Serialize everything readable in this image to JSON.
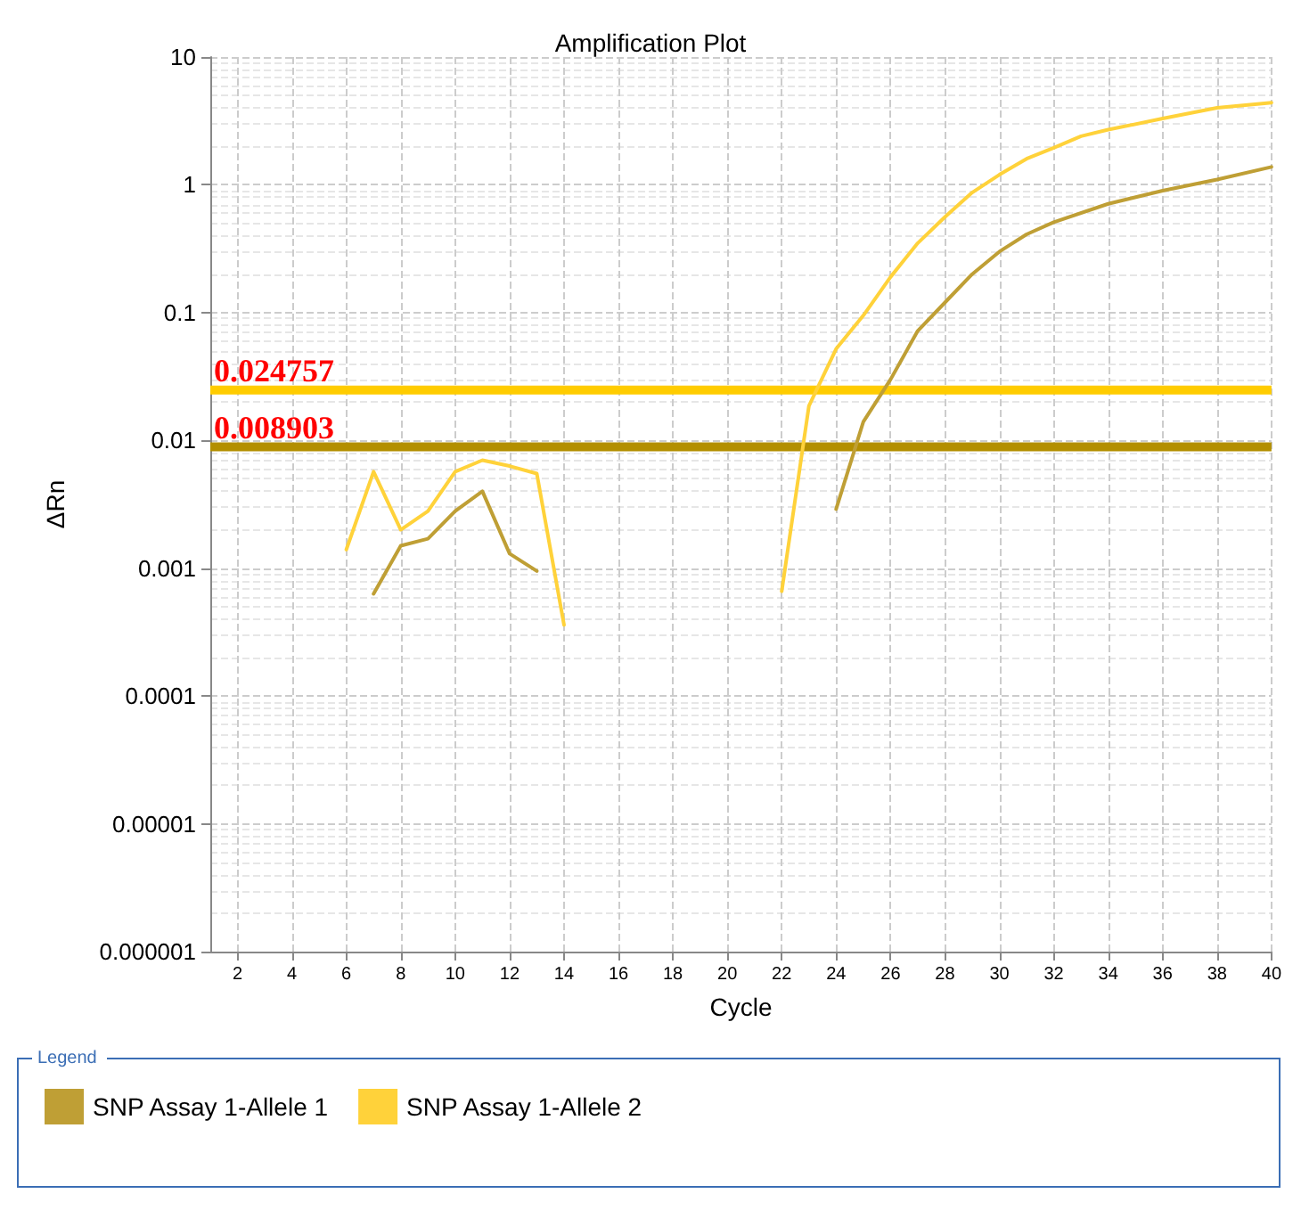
{
  "chart_data": {
    "type": "line",
    "title": "Amplification Plot",
    "xlabel": "Cycle",
    "ylabel": "ΔRn",
    "legend_title": "Legend",
    "log": "y",
    "grid": true,
    "legend": "bottom",
    "marker": "none",
    "line_style": "solid",
    "xlim": [
      1,
      40
    ],
    "xticks": [
      2,
      4,
      6,
      8,
      10,
      12,
      14,
      16,
      18,
      20,
      22,
      24,
      26,
      28,
      30,
      32,
      34,
      36,
      38,
      40
    ],
    "ylim": [
      1e-06,
      10
    ],
    "yticks": [
      {
        "value": 1e-06,
        "label": "0.000001"
      },
      {
        "value": 1e-05,
        "label": "0.00001"
      },
      0.0001,
      0.001,
      0.01,
      0.1,
      1,
      10
    ],
    "series": [
      {
        "name": "SNP Assay 1-Allele 1",
        "color": "#bf9f35",
        "x": [
          7,
          8,
          9,
          10,
          11,
          12,
          13,
          14,
          15,
          16,
          17,
          18,
          19,
          20,
          21,
          22,
          23,
          24,
          25,
          26,
          27,
          28,
          29,
          30,
          31,
          32,
          34,
          36,
          38,
          40
        ],
        "values": [
          0.00063,
          0.0015,
          0.0017,
          0.0028,
          0.004,
          0.0013,
          0.00095,
          null,
          null,
          null,
          null,
          null,
          null,
          null,
          null,
          null,
          null,
          0.0029,
          0.014,
          0.03,
          0.072,
          0.12,
          0.2,
          0.3,
          0.41,
          0.51,
          0.71,
          0.9,
          1.1,
          1.38
        ]
      },
      {
        "name": "SNP Assay 1-Allele 2",
        "color": "#ffd23a",
        "x": [
          6,
          7,
          8,
          9,
          10,
          11,
          12,
          13,
          14,
          15,
          16,
          17,
          18,
          19,
          20,
          21,
          22,
          23,
          24,
          25,
          26,
          27,
          28,
          29,
          30,
          31,
          32,
          33,
          34,
          36,
          38,
          40
        ],
        "values": [
          0.0014,
          0.0057,
          0.002,
          0.0028,
          0.0057,
          0.007,
          0.0063,
          0.0055,
          0.00036,
          null,
          null,
          null,
          null,
          null,
          null,
          null,
          0.00066,
          0.0186,
          0.052,
          0.095,
          0.19,
          0.35,
          0.56,
          0.87,
          1.2,
          1.6,
          1.95,
          2.4,
          2.7,
          3.3,
          4.0,
          4.4
        ]
      }
    ],
    "ref_lines": [
      {
        "axis": "y",
        "value": 0.024757,
        "label": "0.024757",
        "color": "#ffcc00"
      },
      {
        "axis": "y",
        "value": 0.008903,
        "label": "0.008903",
        "color": "#b38f00"
      }
    ]
  }
}
